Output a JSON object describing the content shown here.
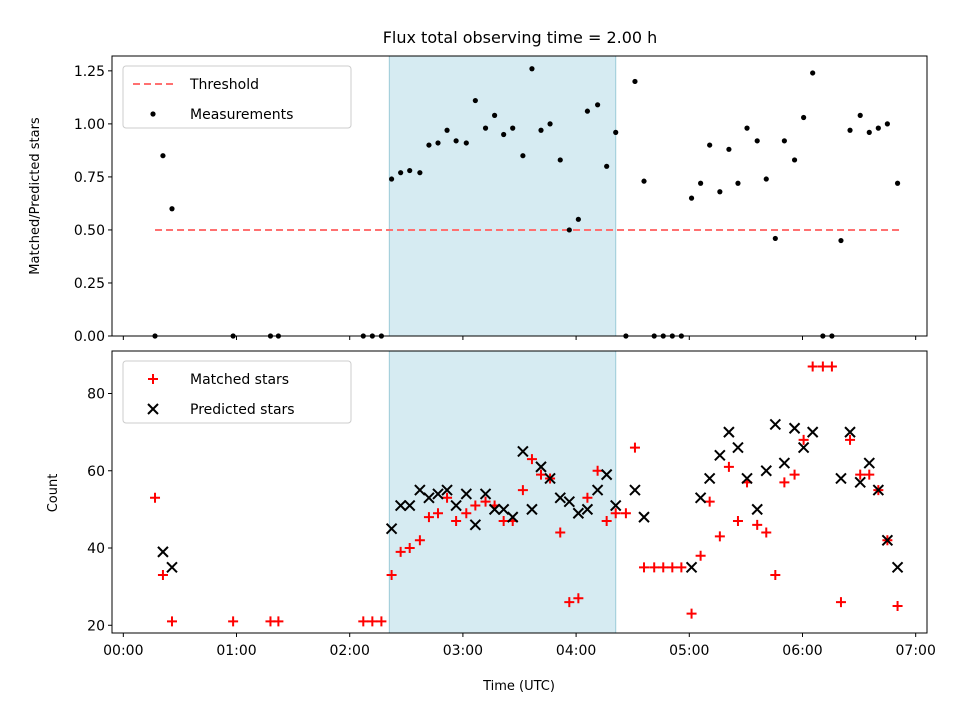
{
  "title": "Flux total observing time = 2.00 h",
  "chart_data": [
    {
      "type": "scatter",
      "panel": "top",
      "ylabel": "Matched/Predicted stars",
      "ylim": [
        0,
        1.32
      ],
      "yticks": [
        "0.00",
        "0.25",
        "0.50",
        "0.75",
        "1.00",
        "1.25"
      ],
      "ytick_values": [
        0,
        0.25,
        0.5,
        0.75,
        1.0,
        1.25
      ],
      "x_unit": "hours UTC",
      "xlim": [
        -0.1,
        7.1
      ],
      "shaded_span": [
        2.35,
        4.35
      ],
      "legend": {
        "placement": "top-left",
        "threshold_label": "Threshold",
        "measurements_label": "Measurements"
      },
      "threshold": {
        "value": 0.5,
        "x_range": [
          0.28,
          6.87
        ],
        "color": "#ff7070"
      },
      "series": [
        {
          "name": "Measurements",
          "color": "#000000",
          "points": [
            [
              0.28,
              0.0
            ],
            [
              0.35,
              0.85
            ],
            [
              0.43,
              0.6
            ],
            [
              0.97,
              0.0
            ],
            [
              1.3,
              0.0
            ],
            [
              1.37,
              0.0
            ],
            [
              2.12,
              0.0
            ],
            [
              2.2,
              0.0
            ],
            [
              2.28,
              0.0
            ],
            [
              2.37,
              0.74
            ],
            [
              2.45,
              0.77
            ],
            [
              2.53,
              0.78
            ],
            [
              2.62,
              0.77
            ],
            [
              2.7,
              0.9
            ],
            [
              2.78,
              0.91
            ],
            [
              2.86,
              0.97
            ],
            [
              2.94,
              0.92
            ],
            [
              3.03,
              0.91
            ],
            [
              3.11,
              1.11
            ],
            [
              3.2,
              0.98
            ],
            [
              3.28,
              1.04
            ],
            [
              3.36,
              0.95
            ],
            [
              3.44,
              0.98
            ],
            [
              3.53,
              0.85
            ],
            [
              3.61,
              1.26
            ],
            [
              3.69,
              0.97
            ],
            [
              3.77,
              1.0
            ],
            [
              3.86,
              0.83
            ],
            [
              3.94,
              0.5
            ],
            [
              4.02,
              0.55
            ],
            [
              4.1,
              1.06
            ],
            [
              4.19,
              1.09
            ],
            [
              4.27,
              0.8
            ],
            [
              4.35,
              0.96
            ],
            [
              4.44,
              0.0
            ],
            [
              4.52,
              1.2
            ],
            [
              4.6,
              0.73
            ],
            [
              4.69,
              0.0
            ],
            [
              4.77,
              0.0
            ],
            [
              4.85,
              0.0
            ],
            [
              4.93,
              0.0
            ],
            [
              5.02,
              0.65
            ],
            [
              5.1,
              0.72
            ],
            [
              5.18,
              0.9
            ],
            [
              5.27,
              0.68
            ],
            [
              5.35,
              0.88
            ],
            [
              5.43,
              0.72
            ],
            [
              5.51,
              0.98
            ],
            [
              5.6,
              0.92
            ],
            [
              5.68,
              0.74
            ],
            [
              5.76,
              0.46
            ],
            [
              5.84,
              0.92
            ],
            [
              5.93,
              0.83
            ],
            [
              6.01,
              1.03
            ],
            [
              6.09,
              1.24
            ],
            [
              6.18,
              0.0
            ],
            [
              6.26,
              0.0
            ],
            [
              6.34,
              0.45
            ],
            [
              6.42,
              0.97
            ],
            [
              6.51,
              1.04
            ],
            [
              6.59,
              0.96
            ],
            [
              6.67,
              0.98
            ],
            [
              6.75,
              1.0
            ],
            [
              6.84,
              0.72
            ]
          ]
        }
      ]
    },
    {
      "type": "scatter",
      "panel": "bottom",
      "xlabel": "Time (UTC)",
      "ylabel": "Count",
      "ylim": [
        18,
        91
      ],
      "yticks": [
        "20",
        "40",
        "60",
        "80"
      ],
      "ytick_values": [
        20,
        40,
        60,
        80
      ],
      "xlim": [
        -0.1,
        7.1
      ],
      "xticks": [
        "00:00",
        "01:00",
        "02:00",
        "03:00",
        "04:00",
        "05:00",
        "06:00",
        "07:00"
      ],
      "xtick_values": [
        0,
        1,
        2,
        3,
        4,
        5,
        6,
        7
      ],
      "shaded_span": [
        2.35,
        4.35
      ],
      "legend": {
        "placement": "top-left"
      },
      "series": [
        {
          "name": "Matched stars",
          "marker": "plus",
          "color": "#ff0000",
          "points": [
            [
              0.28,
              53
            ],
            [
              0.35,
              33
            ],
            [
              0.43,
              21
            ],
            [
              0.97,
              21
            ],
            [
              1.3,
              21
            ],
            [
              1.37,
              21
            ],
            [
              2.12,
              21
            ],
            [
              2.2,
              21
            ],
            [
              2.28,
              21
            ],
            [
              2.37,
              33
            ],
            [
              2.45,
              39
            ],
            [
              2.53,
              40
            ],
            [
              2.62,
              42
            ],
            [
              2.7,
              48
            ],
            [
              2.78,
              49
            ],
            [
              2.86,
              53
            ],
            [
              2.94,
              47
            ],
            [
              3.03,
              49
            ],
            [
              3.11,
              51
            ],
            [
              3.2,
              52
            ],
            [
              3.28,
              51
            ],
            [
              3.36,
              47
            ],
            [
              3.44,
              47
            ],
            [
              3.53,
              55
            ],
            [
              3.61,
              63
            ],
            [
              3.69,
              59
            ],
            [
              3.77,
              58
            ],
            [
              3.86,
              44
            ],
            [
              3.94,
              26
            ],
            [
              4.02,
              27
            ],
            [
              4.1,
              53
            ],
            [
              4.19,
              60
            ],
            [
              4.27,
              47
            ],
            [
              4.35,
              49
            ],
            [
              4.44,
              49
            ],
            [
              4.52,
              66
            ],
            [
              4.6,
              35
            ],
            [
              4.69,
              35
            ],
            [
              4.77,
              35
            ],
            [
              4.85,
              35
            ],
            [
              4.93,
              35
            ],
            [
              5.02,
              23
            ],
            [
              5.1,
              38
            ],
            [
              5.18,
              52
            ],
            [
              5.27,
              43
            ],
            [
              5.35,
              61
            ],
            [
              5.43,
              47
            ],
            [
              5.51,
              57
            ],
            [
              5.6,
              46
            ],
            [
              5.68,
              44
            ],
            [
              5.76,
              33
            ],
            [
              5.84,
              57
            ],
            [
              5.93,
              59
            ],
            [
              6.01,
              68
            ],
            [
              6.09,
              87
            ],
            [
              6.18,
              87
            ],
            [
              6.26,
              87
            ],
            [
              6.34,
              26
            ],
            [
              6.42,
              68
            ],
            [
              6.51,
              59
            ],
            [
              6.59,
              59
            ],
            [
              6.67,
              55
            ],
            [
              6.75,
              42
            ],
            [
              6.84,
              25
            ]
          ]
        },
        {
          "name": "Predicted stars",
          "marker": "x",
          "color": "#000000",
          "points": [
            [
              0.35,
              39
            ],
            [
              0.43,
              35
            ],
            [
              2.37,
              45
            ],
            [
              2.45,
              51
            ],
            [
              2.53,
              51
            ],
            [
              2.62,
              55
            ],
            [
              2.7,
              53
            ],
            [
              2.78,
              54
            ],
            [
              2.86,
              55
            ],
            [
              2.94,
              51
            ],
            [
              3.03,
              54
            ],
            [
              3.11,
              46
            ],
            [
              3.2,
              54
            ],
            [
              3.28,
              50
            ],
            [
              3.36,
              50
            ],
            [
              3.44,
              48
            ],
            [
              3.53,
              65
            ],
            [
              3.61,
              50
            ],
            [
              3.69,
              61
            ],
            [
              3.77,
              58
            ],
            [
              3.86,
              53
            ],
            [
              3.94,
              52
            ],
            [
              4.02,
              49
            ],
            [
              4.1,
              50
            ],
            [
              4.19,
              55
            ],
            [
              4.27,
              59
            ],
            [
              4.35,
              51
            ],
            [
              4.52,
              55
            ],
            [
              4.6,
              48
            ],
            [
              5.02,
              35
            ],
            [
              5.1,
              53
            ],
            [
              5.18,
              58
            ],
            [
              5.27,
              64
            ],
            [
              5.35,
              70
            ],
            [
              5.43,
              66
            ],
            [
              5.51,
              58
            ],
            [
              5.6,
              50
            ],
            [
              5.68,
              60
            ],
            [
              5.76,
              72
            ],
            [
              5.84,
              62
            ],
            [
              5.93,
              71
            ],
            [
              6.01,
              66
            ],
            [
              6.09,
              70
            ],
            [
              6.34,
              58
            ],
            [
              6.42,
              70
            ],
            [
              6.51,
              57
            ],
            [
              6.59,
              62
            ],
            [
              6.67,
              55
            ],
            [
              6.75,
              42
            ],
            [
              6.84,
              35
            ]
          ]
        }
      ]
    }
  ]
}
